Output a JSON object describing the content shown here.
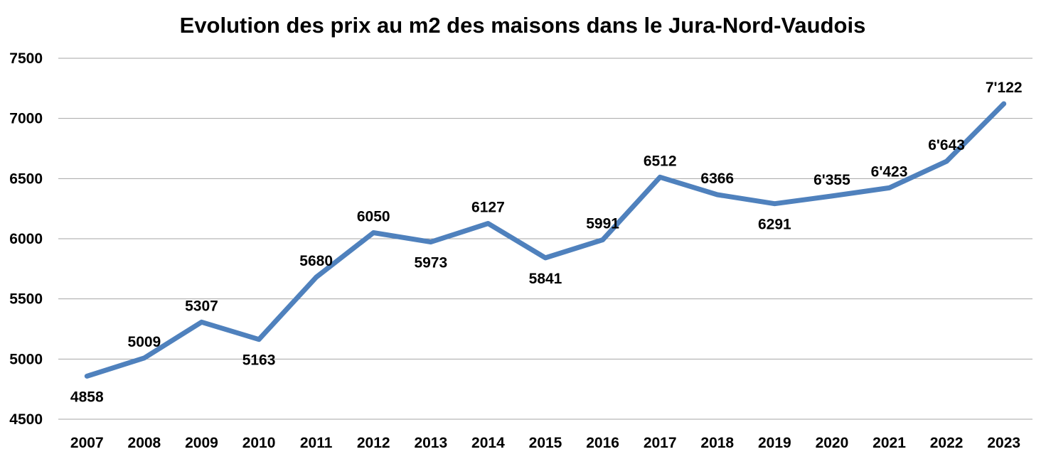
{
  "chart_data": {
    "type": "line",
    "title": "Evolution des prix au m2 des maisons dans le Jura-Nord-Vaudois",
    "xlabel": "",
    "ylabel": "",
    "ylim": [
      4500,
      7500
    ],
    "yticks": [
      "7500",
      "7000",
      "6500",
      "6000",
      "5500",
      "5000",
      "4500"
    ],
    "ytick_values": [
      7500,
      7000,
      6500,
      6000,
      5500,
      5000,
      4500
    ],
    "grid": true,
    "legend": "none",
    "categories": [
      "2007",
      "2008",
      "2009",
      "2010",
      "2011",
      "2012",
      "2013",
      "2014",
      "2015",
      "2016",
      "2017",
      "2018",
      "2019",
      "2020",
      "2021",
      "2022",
      "2023"
    ],
    "series": [
      {
        "color": "#4f81bd",
        "values": [
          4858,
          5009,
          5307,
          5163,
          5680,
          6050,
          5973,
          6127,
          5841,
          5991,
          6512,
          6366,
          6291,
          6355,
          6423,
          6643,
          7122
        ],
        "labels": [
          "4858",
          "5009",
          "5307",
          "5163",
          "5680",
          "6050",
          "5973",
          "6127",
          "5841",
          "5991",
          "6512",
          "6366",
          "6291",
          "6'355",
          "6'423",
          "6'643",
          "7'122"
        ]
      }
    ]
  }
}
